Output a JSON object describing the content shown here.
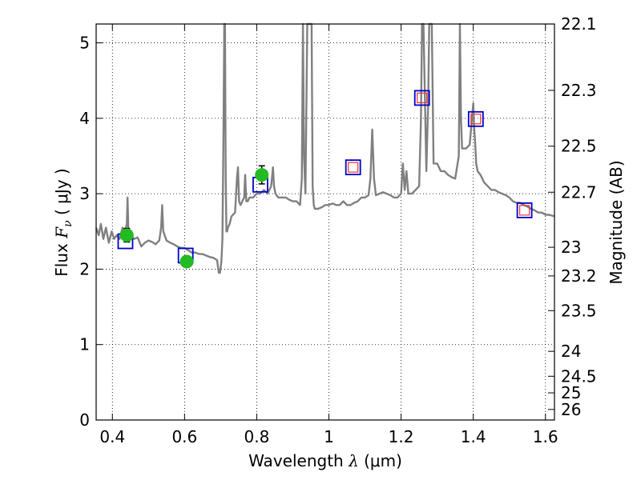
{
  "chart_data": {
    "type": "line",
    "xlabel_text": "Wavelength",
    "xlabel_symbol": "λ",
    "xlabel_unit": "(μm)",
    "ylabel_text": "Flux",
    "ylabel_symbol": "F",
    "ylabel_sub": "ν",
    "ylabel_unit": "( μJy )",
    "y2label": "Magnitude (AB)",
    "xlim": [
      0.355,
      1.625
    ],
    "ylim": [
      0,
      5.25
    ],
    "grid": true,
    "x_ticks": [
      0.4,
      0.6,
      0.8,
      1.0,
      1.2,
      1.4,
      1.6
    ],
    "x_tick_labels": [
      "0.4",
      "0.6",
      "0.8",
      "1",
      "1.2",
      "1.4",
      "1.6"
    ],
    "y_ticks": [
      0,
      1,
      2,
      3,
      4,
      5
    ],
    "y_tick_labels": [
      "0",
      "1",
      "2",
      "3",
      "4",
      "5"
    ],
    "y2_ticks": [
      {
        "label": "22.1",
        "flux": 5.25
      },
      {
        "label": "22.3",
        "flux": 4.37
      },
      {
        "label": "22.5",
        "flux": 3.63
      },
      {
        "label": "22.7",
        "flux": 3.02
      },
      {
        "label": "23",
        "flux": 2.29
      },
      {
        "label": "23.2",
        "flux": 1.91
      },
      {
        "label": "23.5",
        "flux": 1.45
      },
      {
        "label": "24",
        "flux": 0.91
      },
      {
        "label": "24.5",
        "flux": 0.58
      },
      {
        "label": "25",
        "flux": 0.36
      },
      {
        "label": "26",
        "flux": 0.14
      }
    ],
    "colors": {
      "spectrum": "#808080",
      "photometry": "#22bb22",
      "model_box": "#0000cc",
      "observed_box": "#ee3333"
    },
    "spectrum": {
      "name": "",
      "x": [
        0.355,
        0.362,
        0.368,
        0.375,
        0.382,
        0.39,
        0.398,
        0.405,
        0.412,
        0.42,
        0.428,
        0.435,
        0.44,
        0.442,
        0.444,
        0.45,
        0.46,
        0.47,
        0.48,
        0.49,
        0.5,
        0.51,
        0.52,
        0.53,
        0.535,
        0.538,
        0.541,
        0.55,
        0.56,
        0.57,
        0.58,
        0.59,
        0.6,
        0.61,
        0.62,
        0.63,
        0.64,
        0.65,
        0.66,
        0.67,
        0.68,
        0.69,
        0.695,
        0.698,
        0.702,
        0.705,
        0.708,
        0.71,
        0.712,
        0.714,
        0.716,
        0.718,
        0.72,
        0.725,
        0.73,
        0.74,
        0.745,
        0.748,
        0.751,
        0.755,
        0.76,
        0.765,
        0.768,
        0.771,
        0.775,
        0.78,
        0.79,
        0.8,
        0.81,
        0.82,
        0.83,
        0.84,
        0.845,
        0.848,
        0.852,
        0.86,
        0.87,
        0.88,
        0.89,
        0.9,
        0.91,
        0.92,
        0.925,
        0.928,
        0.931,
        0.935,
        0.94,
        0.945,
        0.95,
        0.952,
        0.955,
        0.958,
        0.961,
        0.965,
        0.97,
        0.98,
        0.99,
        1.0,
        1.01,
        1.02,
        1.03,
        1.04,
        1.05,
        1.06,
        1.07,
        1.08,
        1.09,
        1.1,
        1.11,
        1.115,
        1.12,
        1.125,
        1.13,
        1.14,
        1.15,
        1.16,
        1.17,
        1.18,
        1.19,
        1.2,
        1.205,
        1.21,
        1.215,
        1.22,
        1.23,
        1.24,
        1.25,
        1.255,
        1.258,
        1.262,
        1.265,
        1.27,
        1.275,
        1.278,
        1.281,
        1.285,
        1.29,
        1.3,
        1.31,
        1.32,
        1.33,
        1.34,
        1.35,
        1.36,
        1.363,
        1.366,
        1.369,
        1.372,
        1.375,
        1.38,
        1.39,
        1.4,
        1.402,
        1.405,
        1.408,
        1.412,
        1.42,
        1.43,
        1.44,
        1.45,
        1.46,
        1.47,
        1.48,
        1.49,
        1.5,
        1.51,
        1.52,
        1.53,
        1.54,
        1.55,
        1.56,
        1.57,
        1.58,
        1.59,
        1.6,
        1.61,
        1.625
      ],
      "y": [
        2.55,
        2.45,
        2.6,
        2.4,
        2.55,
        2.35,
        2.5,
        2.4,
        2.45,
        2.4,
        2.55,
        2.5,
        2.6,
        2.95,
        2.55,
        2.45,
        2.4,
        2.42,
        2.3,
        2.35,
        2.38,
        2.36,
        2.33,
        2.38,
        2.55,
        2.85,
        2.5,
        2.38,
        2.35,
        2.33,
        2.3,
        2.28,
        2.28,
        2.25,
        2.22,
        2.22,
        2.2,
        2.2,
        2.18,
        2.16,
        2.15,
        2.12,
        1.95,
        1.95,
        2.1,
        2.4,
        3.9,
        5.25,
        5.25,
        3.2,
        2.5,
        2.5,
        2.55,
        2.6,
        2.7,
        2.75,
        3.2,
        3.35,
        2.9,
        2.85,
        2.9,
        2.95,
        3.25,
        2.9,
        2.9,
        2.95,
        2.95,
        3.0,
        3.0,
        3.05,
        3.0,
        3.1,
        3.35,
        3.1,
        3.0,
        2.95,
        2.95,
        2.95,
        2.92,
        2.9,
        2.9,
        2.85,
        3.2,
        5.25,
        3.5,
        3.0,
        5.25,
        5.25,
        5.25,
        5.25,
        3.1,
        2.85,
        2.8,
        2.8,
        2.8,
        2.82,
        2.85,
        2.85,
        2.87,
        2.85,
        2.85,
        2.9,
        2.85,
        2.85,
        2.88,
        2.9,
        2.95,
        2.95,
        2.98,
        3.2,
        3.85,
        3.2,
        2.98,
        3.0,
        3.02,
        3.0,
        2.98,
        2.95,
        2.95,
        3.0,
        3.4,
        3.05,
        3.3,
        3.0,
        3.0,
        3.05,
        3.1,
        4.0,
        5.25,
        5.25,
        4.5,
        3.3,
        4.2,
        5.25,
        5.25,
        5.25,
        3.4,
        3.4,
        3.3,
        3.3,
        3.25,
        3.22,
        3.2,
        3.5,
        5.25,
        4.0,
        3.6,
        3.6,
        3.6,
        3.6,
        3.65,
        4.2,
        3.9,
        3.7,
        3.4,
        3.3,
        3.25,
        3.15,
        3.1,
        3.05,
        3.05,
        3.02,
        3.0,
        2.98,
        2.95,
        2.9,
        2.88,
        2.88,
        2.85,
        2.83,
        2.8,
        2.78,
        2.75,
        2.75,
        2.72,
        2.72,
        2.7
      ]
    },
    "photometry": [
      {
        "x": 0.44,
        "y": 2.45,
        "err": 0.09
      },
      {
        "x": 0.606,
        "y": 2.1,
        "err": 0.04
      },
      {
        "x": 0.814,
        "y": 3.25,
        "err": 0.12
      }
    ],
    "model_boxes": [
      {
        "x": 0.436,
        "y": 2.37
      },
      {
        "x": 0.603,
        "y": 2.18
      },
      {
        "x": 0.81,
        "y": 3.12
      },
      {
        "x": 1.067,
        "y": 3.35
      },
      {
        "x": 1.258,
        "y": 4.27
      },
      {
        "x": 1.407,
        "y": 3.99
      },
      {
        "x": 1.542,
        "y": 2.78
      }
    ],
    "observed_boxes": [
      {
        "x": 1.067,
        "y": 3.35
      },
      {
        "x": 1.258,
        "y": 4.27
      },
      {
        "x": 1.407,
        "y": 3.99
      },
      {
        "x": 1.542,
        "y": 2.78
      }
    ]
  }
}
